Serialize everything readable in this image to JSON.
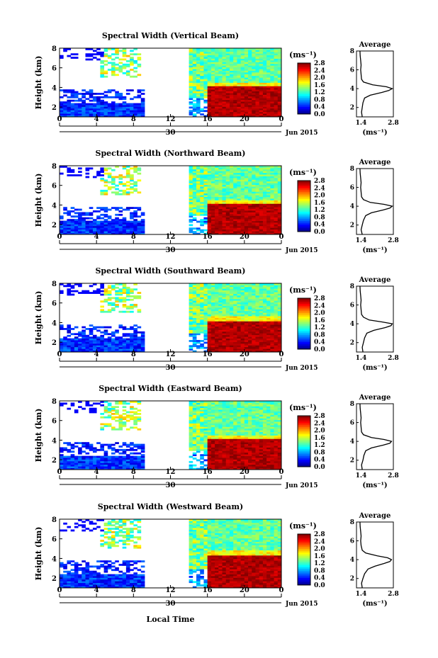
{
  "figure": {
    "bottom_xlabel": "Local Time",
    "date_label": "Jun 2015"
  },
  "chart_data": [
    {
      "type": "heatmap",
      "title": "Spectral Width (Vertical Beam)",
      "ylabel": "Height (km)",
      "ylim": [
        1,
        8
      ],
      "yticks": [
        "2",
        "4",
        "6",
        "8"
      ],
      "xticks": [
        "0",
        "4",
        "8",
        "12",
        "16",
        "20",
        "0"
      ],
      "day_label": "30",
      "colorbar": {
        "unit": "(ms⁻¹)",
        "ticks": [
          "0.0",
          "0.4",
          "0.8",
          "1.2",
          "1.6",
          "2.0",
          "2.4",
          "2.8"
        ],
        "range": [
          0,
          2.8
        ]
      },
      "gaps_hours": [
        [
          9,
          14
        ]
      ],
      "features": {
        "layer_top_km": 4.2,
        "high_value": 2.8,
        "background_value": 1.3
      },
      "average_profile": {
        "title": "Average",
        "xlabel": "(ms⁻¹)",
        "xticks": [
          "1.4",
          "2.8"
        ],
        "xlim": [
          1.2,
          2.8
        ],
        "yticks": [
          "2",
          "4",
          "6",
          "8"
        ],
        "height_km": [
          1.0,
          1.5,
          2.0,
          2.5,
          3.0,
          3.3,
          3.6,
          3.8,
          4.0,
          4.2,
          4.4,
          4.7,
          5.0,
          5.5,
          6.0,
          6.5,
          7.0,
          7.5,
          8.0
        ],
        "value": [
          1.45,
          1.42,
          1.45,
          1.48,
          1.55,
          1.8,
          2.3,
          2.6,
          2.75,
          2.5,
          1.9,
          1.5,
          1.42,
          1.4,
          1.38,
          1.4,
          1.38,
          1.36,
          1.35
        ]
      }
    },
    {
      "type": "heatmap",
      "title": "Spectral Width (Northward Beam)",
      "ylabel": "Height (km)",
      "ylim": [
        1,
        8
      ],
      "yticks": [
        "2",
        "4",
        "6",
        "8"
      ],
      "xticks": [
        "0",
        "4",
        "8",
        "12",
        "16",
        "20",
        "0"
      ],
      "day_label": "30",
      "colorbar": {
        "unit": "(ms⁻¹)",
        "ticks": [
          "0.0",
          "0.4",
          "0.8",
          "1.2",
          "1.6",
          "2.0",
          "2.4",
          "2.8"
        ],
        "range": [
          0,
          2.8
        ]
      },
      "gaps_hours": [
        [
          9,
          14
        ]
      ],
      "features": {
        "layer_top_km": 4.2,
        "high_value": 2.8,
        "background_value": 1.3
      },
      "average_profile": {
        "title": "Average",
        "xlabel": "(ms⁻¹)",
        "xticks": [
          "1.4",
          "2.8"
        ],
        "xlim": [
          1.2,
          2.8
        ],
        "yticks": [
          "2",
          "4",
          "6",
          "8"
        ],
        "height_km": [
          1.0,
          1.5,
          2.0,
          2.5,
          3.0,
          3.3,
          3.6,
          3.8,
          4.0,
          4.2,
          4.4,
          4.7,
          5.0,
          5.5,
          6.0,
          6.5,
          7.0,
          7.5,
          8.0
        ],
        "value": [
          1.45,
          1.4,
          1.45,
          1.5,
          1.6,
          1.85,
          2.35,
          2.65,
          2.75,
          2.4,
          1.8,
          1.5,
          1.42,
          1.4,
          1.38,
          1.4,
          1.38,
          1.36,
          1.35
        ]
      }
    },
    {
      "type": "heatmap",
      "title": "Spectral Width (Southward Beam)",
      "ylabel": "Height (km)",
      "ylim": [
        1,
        8
      ],
      "yticks": [
        "2",
        "4",
        "6",
        "8"
      ],
      "xticks": [
        "0",
        "4",
        "8",
        "12",
        "16",
        "20",
        "0"
      ],
      "day_label": "30",
      "colorbar": {
        "unit": "(ms⁻¹)",
        "ticks": [
          "0.0",
          "0.4",
          "0.8",
          "1.2",
          "1.6",
          "2.0",
          "2.4",
          "2.8"
        ],
        "range": [
          0,
          2.8
        ]
      },
      "gaps_hours": [
        [
          9,
          14
        ]
      ],
      "features": {
        "layer_top_km": 4.3,
        "high_value": 2.8,
        "background_value": 1.3
      },
      "average_profile": {
        "title": "Average",
        "xlabel": "(ms⁻¹)",
        "xticks": [
          "1.4",
          "2.8"
        ],
        "xlim": [
          1.2,
          2.8
        ],
        "yticks": [
          "2",
          "4",
          "6",
          "8"
        ],
        "height_km": [
          1.0,
          1.5,
          2.0,
          2.5,
          3.0,
          3.3,
          3.6,
          3.8,
          4.0,
          4.2,
          4.4,
          4.7,
          5.0,
          5.5,
          6.0,
          6.5,
          7.0,
          7.5,
          8.0
        ],
        "value": [
          1.48,
          1.45,
          1.5,
          1.55,
          1.65,
          1.95,
          2.45,
          2.7,
          2.75,
          2.3,
          1.75,
          1.5,
          1.42,
          1.4,
          1.38,
          1.4,
          1.38,
          1.36,
          1.35
        ]
      }
    },
    {
      "type": "heatmap",
      "title": "Spectral Width (Eastward Beam)",
      "ylabel": "Height (km)",
      "ylim": [
        1,
        8
      ],
      "yticks": [
        "2",
        "4",
        "6",
        "8"
      ],
      "xticks": [
        "0",
        "4",
        "8",
        "12",
        "16",
        "20",
        "0"
      ],
      "day_label": "30",
      "colorbar": {
        "unit": "(ms⁻¹)",
        "ticks": [
          "0.0",
          "0.4",
          "0.8",
          "1.2",
          "1.6",
          "2.0",
          "2.4",
          "2.8"
        ],
        "range": [
          0,
          2.8
        ]
      },
      "gaps_hours": [
        [
          9,
          14
        ]
      ],
      "features": {
        "layer_top_km": 4.2,
        "high_value": 2.8,
        "background_value": 1.3
      },
      "average_profile": {
        "title": "Average",
        "xlabel": "(ms⁻¹)",
        "xticks": [
          "1.4",
          "2.8"
        ],
        "xlim": [
          1.2,
          2.8
        ],
        "yticks": [
          "2",
          "4",
          "6",
          "8"
        ],
        "height_km": [
          1.0,
          1.5,
          2.0,
          2.5,
          3.0,
          3.3,
          3.6,
          3.8,
          4.0,
          4.2,
          4.4,
          4.7,
          5.0,
          5.5,
          6.0,
          6.5,
          7.0,
          7.5,
          8.0
        ],
        "value": [
          1.45,
          1.42,
          1.48,
          1.52,
          1.6,
          1.85,
          2.35,
          2.65,
          2.72,
          2.4,
          1.85,
          1.5,
          1.42,
          1.4,
          1.38,
          1.4,
          1.38,
          1.36,
          1.35
        ]
      }
    },
    {
      "type": "heatmap",
      "title": "Spectral Width (Westward Beam)",
      "ylabel": "Height (km)",
      "ylim": [
        1,
        8
      ],
      "yticks": [
        "2",
        "4",
        "6",
        "8"
      ],
      "xticks": [
        "0",
        "4",
        "8",
        "12",
        "16",
        "20",
        "0"
      ],
      "day_label": "30",
      "colorbar": {
        "unit": "(ms⁻¹)",
        "ticks": [
          "0.0",
          "0.4",
          "0.8",
          "1.2",
          "1.6",
          "2.0",
          "2.4",
          "2.8"
        ],
        "range": [
          0,
          2.8
        ]
      },
      "gaps_hours": [
        [
          9,
          14
        ]
      ],
      "features": {
        "layer_top_km": 4.5,
        "high_value": 2.8,
        "background_value": 1.3
      },
      "average_profile": {
        "title": "Average",
        "xlabel": "(ms⁻¹)",
        "xticks": [
          "1.4",
          "2.8"
        ],
        "xlim": [
          1.2,
          2.8
        ],
        "yticks": [
          "2",
          "4",
          "6",
          "8"
        ],
        "height_km": [
          1.0,
          1.5,
          2.0,
          2.5,
          3.0,
          3.3,
          3.6,
          3.8,
          4.0,
          4.2,
          4.4,
          4.7,
          5.0,
          5.5,
          6.0,
          6.5,
          7.0,
          7.5,
          8.0
        ],
        "value": [
          1.45,
          1.42,
          1.48,
          1.55,
          1.7,
          2.0,
          2.4,
          2.65,
          2.72,
          2.55,
          2.1,
          1.6,
          1.45,
          1.4,
          1.38,
          1.4,
          1.38,
          1.36,
          1.35
        ]
      }
    }
  ]
}
